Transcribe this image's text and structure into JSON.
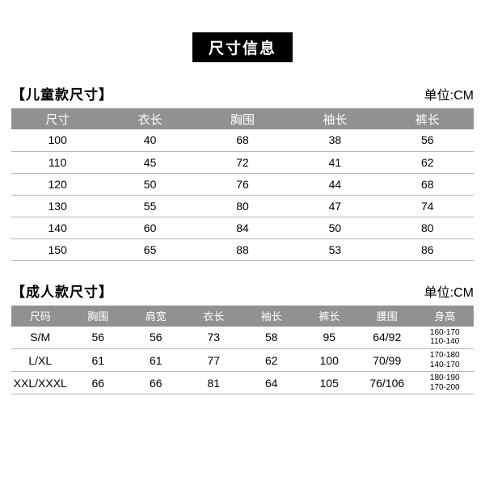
{
  "colors": {
    "header_bg": "#8f9193",
    "header_fg": "#ffffff",
    "row_border": "#b8b8b8",
    "title_bg": "#000000",
    "title_fg": "#ffffff",
    "page_bg": "#ffffff"
  },
  "main_title": "尺寸信息",
  "unit_label": "单位:CM",
  "children": {
    "title": "【儿童款尺寸】",
    "columns": [
      "尺寸",
      "衣长",
      "胸围",
      "袖长",
      "裤长"
    ],
    "rows": [
      [
        "100",
        "40",
        "68",
        "38",
        "56"
      ],
      [
        "110",
        "45",
        "72",
        "41",
        "62"
      ],
      [
        "120",
        "50",
        "76",
        "44",
        "68"
      ],
      [
        "130",
        "55",
        "80",
        "47",
        "74"
      ],
      [
        "140",
        "60",
        "84",
        "50",
        "80"
      ],
      [
        "150",
        "65",
        "88",
        "53",
        "86"
      ]
    ]
  },
  "adult": {
    "title": "【成人款尺寸】",
    "columns": [
      "尺码",
      "胸围",
      "肩宽",
      "衣长",
      "袖长",
      "裤长",
      "腰围",
      "身高"
    ],
    "rows": [
      {
        "cells": [
          "S/M",
          "56",
          "56",
          "73",
          "58",
          "95",
          "64/92"
        ],
        "height": [
          "160-170",
          "110-140"
        ]
      },
      {
        "cells": [
          "L/XL",
          "61",
          "61",
          "77",
          "62",
          "100",
          "70/99"
        ],
        "height": [
          "170-180",
          "140-170"
        ]
      },
      {
        "cells": [
          "XXL/XXXL",
          "66",
          "66",
          "81",
          "64",
          "105",
          "76/106"
        ],
        "height": [
          "180-190",
          "170-200"
        ]
      }
    ]
  }
}
